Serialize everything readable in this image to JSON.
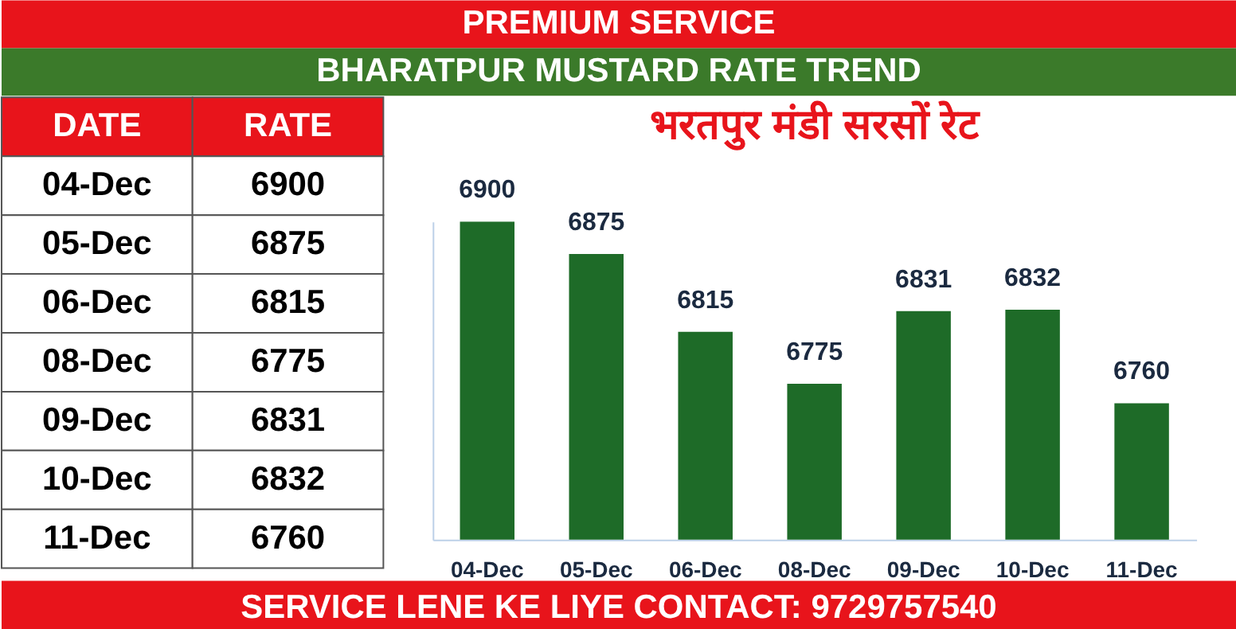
{
  "chart_data": {
    "type": "bar",
    "title": "PREMIUM SERVICE",
    "subtitle": "BHARATPUR MUSTARD RATE TREND",
    "categories": [
      "04-Dec",
      "05-Dec",
      "06-Dec",
      "08-Dec",
      "09-Dec",
      "10-Dec",
      "11-Dec"
    ],
    "values": [
      6900,
      6875,
      6815,
      6775,
      6831,
      6832,
      6760
    ],
    "color": "#1e6b28",
    "ylim": [
      6655,
      6900
    ],
    "tick_labels": "x",
    "data_labels": true,
    "grid": false,
    "legend": false,
    "annotations": [
      "DATE",
      "RATE",
      "भरतपुर मंडी सरसों रेट",
      "SERVICE LENE KE LIYE CONTACT: 9729757540",
      "6900",
      "6875",
      "6815",
      "6775",
      "6831",
      "6832",
      "6760"
    ]
  }
}
